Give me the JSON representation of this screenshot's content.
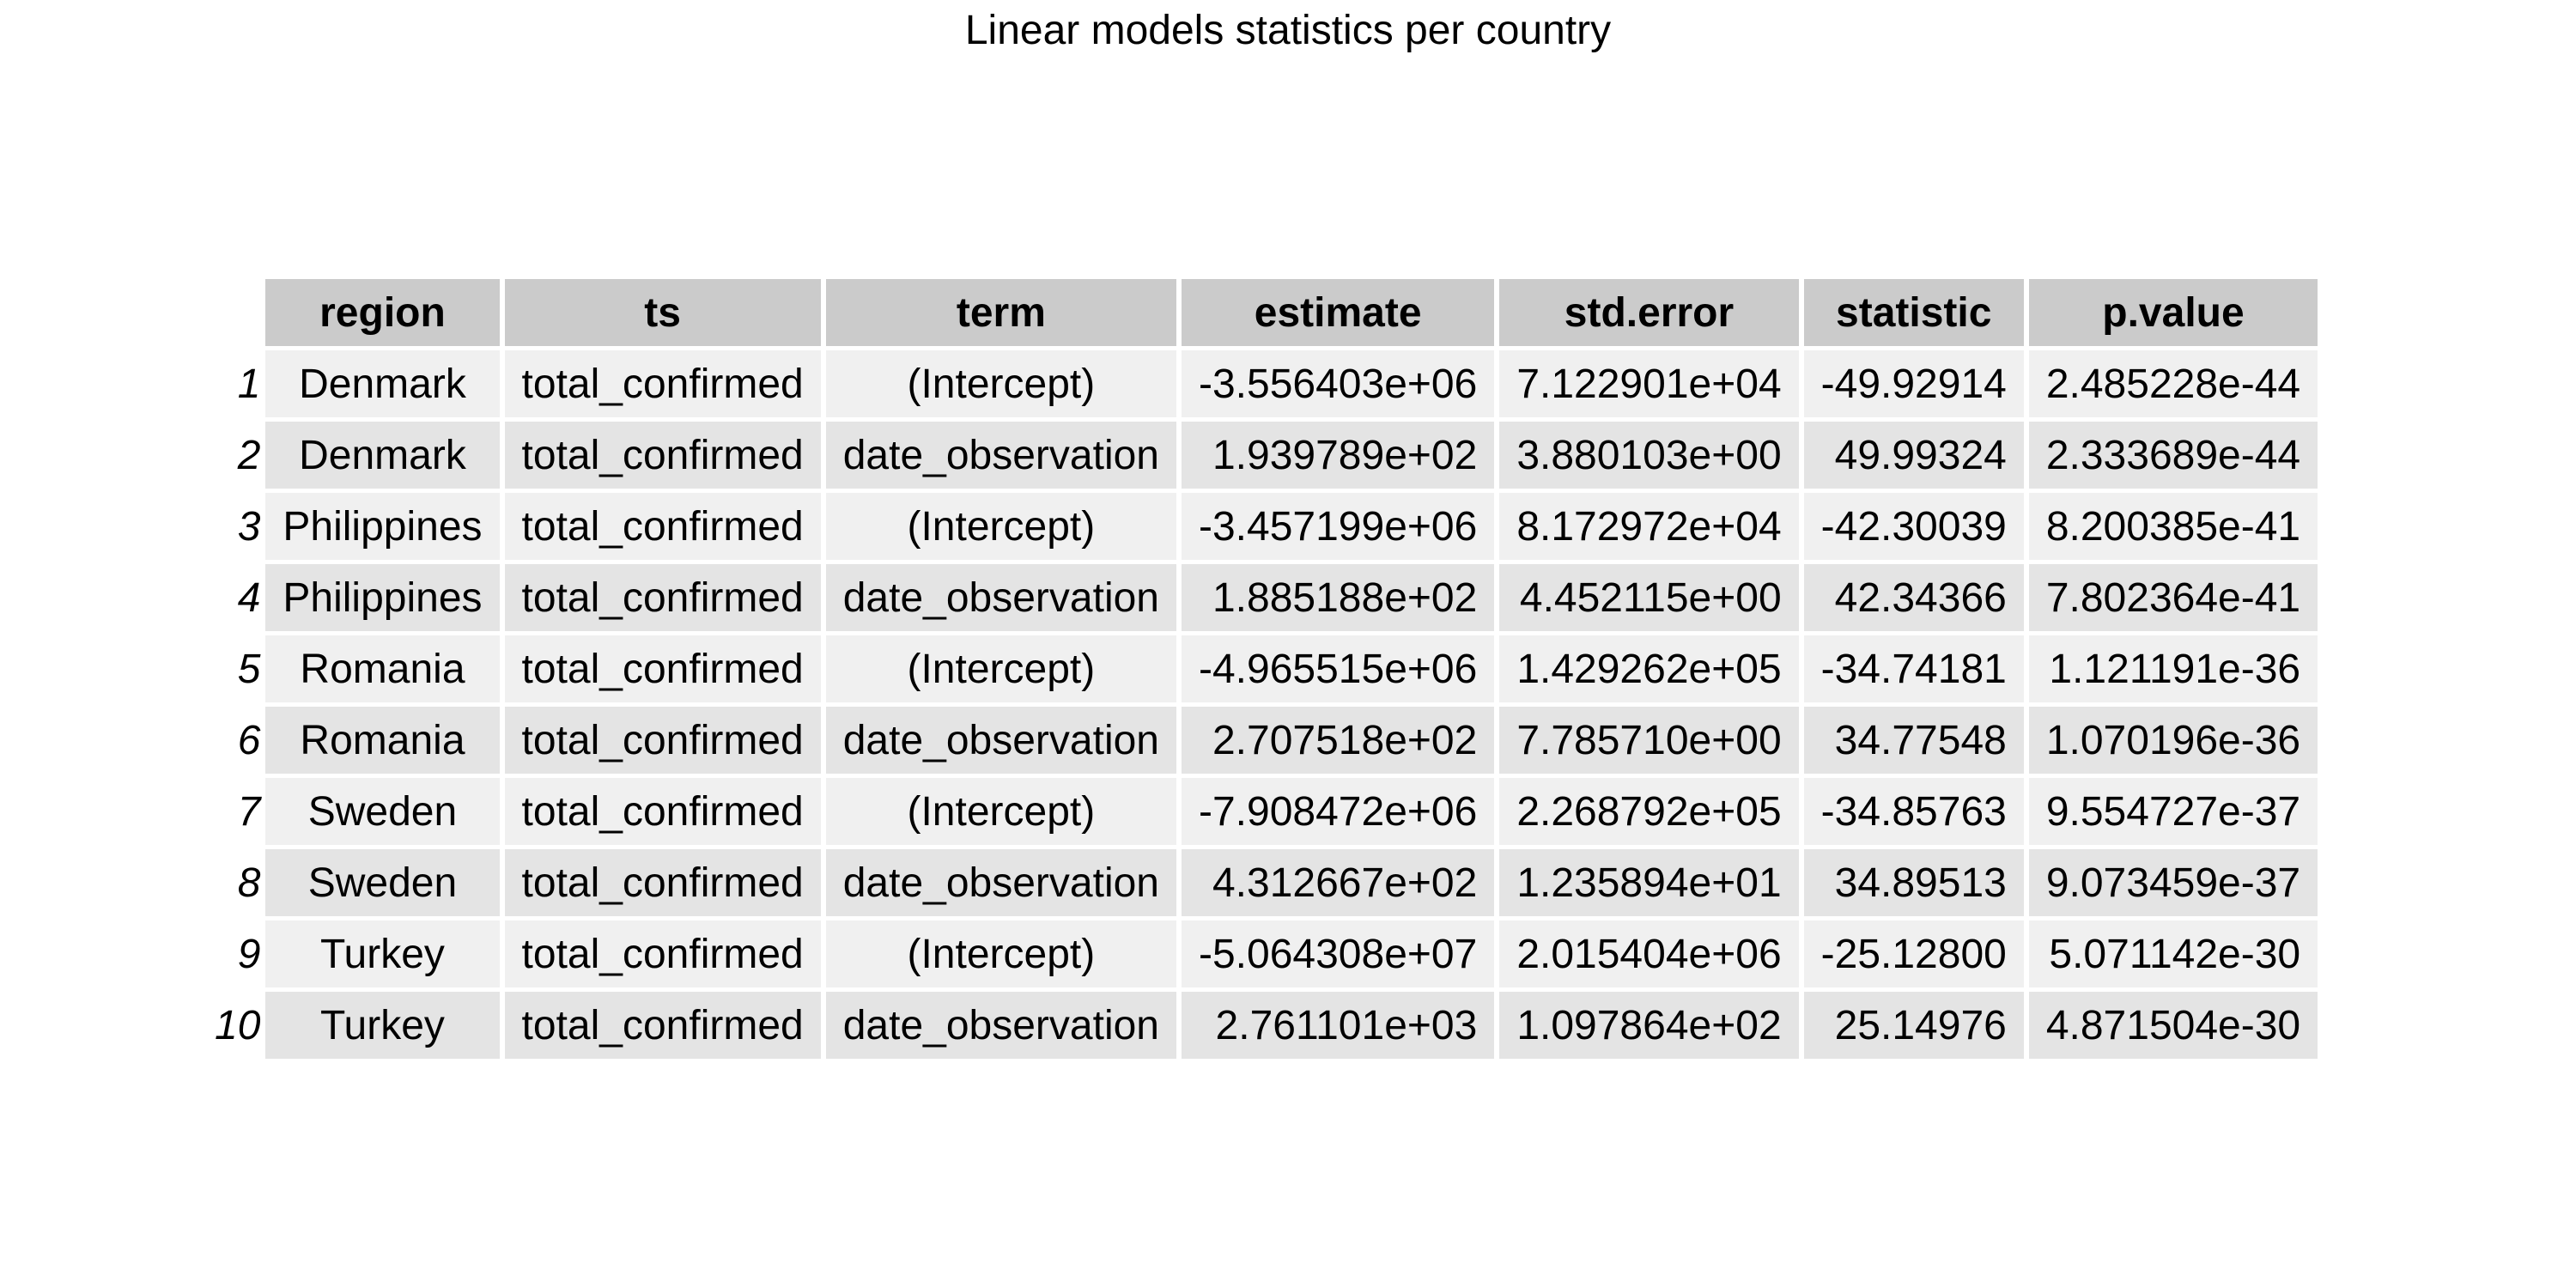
{
  "title": "Linear models statistics per country",
  "chart_data": {
    "type": "table",
    "title": "Linear models statistics per country",
    "columns": [
      "region",
      "ts",
      "term",
      "estimate",
      "std.error",
      "statistic",
      "p.value"
    ],
    "rows": [
      {
        "row": "1",
        "region": "Denmark",
        "ts": "total_confirmed",
        "term": "(Intercept)",
        "estimate": "-3.556403e+06",
        "std_error": "7.122901e+04",
        "statistic": "-49.92914",
        "p_value": "2.485228e-44"
      },
      {
        "row": "2",
        "region": "Denmark",
        "ts": "total_confirmed",
        "term": "date_observation",
        "estimate": "1.939789e+02",
        "std_error": "3.880103e+00",
        "statistic": "49.99324",
        "p_value": "2.333689e-44"
      },
      {
        "row": "3",
        "region": "Philippines",
        "ts": "total_confirmed",
        "term": "(Intercept)",
        "estimate": "-3.457199e+06",
        "std_error": "8.172972e+04",
        "statistic": "-42.30039",
        "p_value": "8.200385e-41"
      },
      {
        "row": "4",
        "region": "Philippines",
        "ts": "total_confirmed",
        "term": "date_observation",
        "estimate": "1.885188e+02",
        "std_error": "4.452115e+00",
        "statistic": "42.34366",
        "p_value": "7.802364e-41"
      },
      {
        "row": "5",
        "region": "Romania",
        "ts": "total_confirmed",
        "term": "(Intercept)",
        "estimate": "-4.965515e+06",
        "std_error": "1.429262e+05",
        "statistic": "-34.74181",
        "p_value": "1.121191e-36"
      },
      {
        "row": "6",
        "region": "Romania",
        "ts": "total_confirmed",
        "term": "date_observation",
        "estimate": "2.707518e+02",
        "std_error": "7.785710e+00",
        "statistic": "34.77548",
        "p_value": "1.070196e-36"
      },
      {
        "row": "7",
        "region": "Sweden",
        "ts": "total_confirmed",
        "term": "(Intercept)",
        "estimate": "-7.908472e+06",
        "std_error": "2.268792e+05",
        "statistic": "-34.85763",
        "p_value": "9.554727e-37"
      },
      {
        "row": "8",
        "region": "Sweden",
        "ts": "total_confirmed",
        "term": "date_observation",
        "estimate": "4.312667e+02",
        "std_error": "1.235894e+01",
        "statistic": "34.89513",
        "p_value": "9.073459e-37"
      },
      {
        "row": "9",
        "region": "Turkey",
        "ts": "total_confirmed",
        "term": "(Intercept)",
        "estimate": "-5.064308e+07",
        "std_error": "2.015404e+06",
        "statistic": "-25.12800",
        "p_value": "5.071142e-30"
      },
      {
        "row": "10",
        "region": "Turkey",
        "ts": "total_confirmed",
        "term": "date_observation",
        "estimate": "2.761101e+03",
        "std_error": "1.097864e+02",
        "statistic": "25.14976",
        "p_value": "4.871504e-30"
      }
    ]
  },
  "colors": {
    "header_bg": "#cbcbcb",
    "row_odd_bg": "#f0f0f0",
    "row_even_bg": "#e4e4e4",
    "text": "#000000"
  }
}
